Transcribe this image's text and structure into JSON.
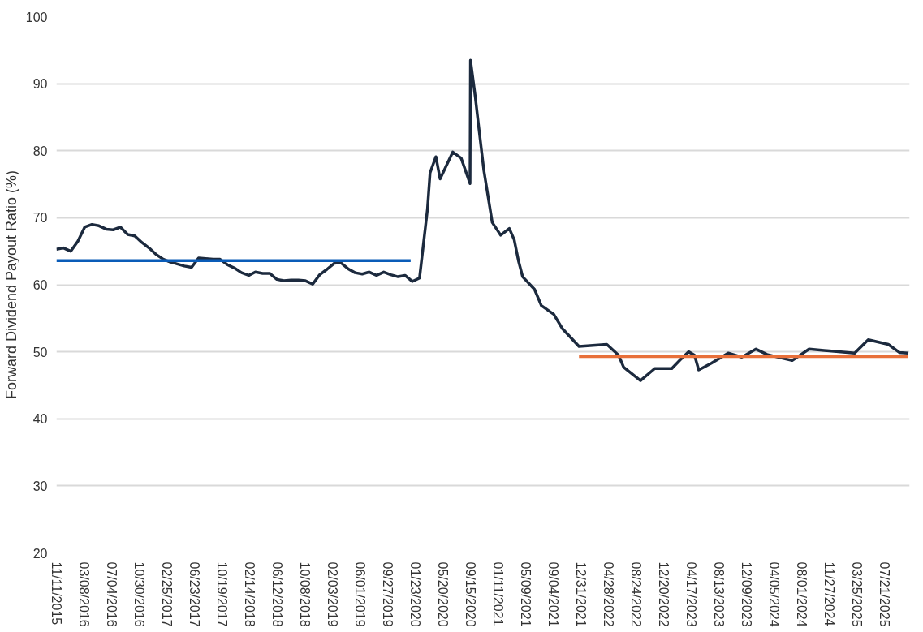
{
  "chart_data": {
    "type": "line",
    "ylabel": "Forward Dividend Payout Ratio (%)",
    "xlim": [
      "2015-11-11",
      "2025-11-07"
    ],
    "ylim": [
      20,
      100
    ],
    "yticks": [
      20,
      30,
      40,
      50,
      60,
      70,
      80,
      90,
      100
    ],
    "grid": "y",
    "line_style": "solid",
    "marker": "none",
    "xticks": [
      {
        "value": "2015-11-11",
        "label": "11/11/2015"
      },
      {
        "value": "2016-03-08",
        "label": "03/08/2016"
      },
      {
        "value": "2016-07-04",
        "label": "07/04/2016"
      },
      {
        "value": "2016-10-30",
        "label": "10/30/2016"
      },
      {
        "value": "2017-02-25",
        "label": "02/25/2017"
      },
      {
        "value": "2017-06-23",
        "label": "06/23/2017"
      },
      {
        "value": "2017-10-19",
        "label": "10/19/2017"
      },
      {
        "value": "2018-02-14",
        "label": "02/14/2018"
      },
      {
        "value": "2018-06-12",
        "label": "06/12/2018"
      },
      {
        "value": "2018-10-08",
        "label": "10/08/2018"
      },
      {
        "value": "2019-02-03",
        "label": "02/03/2019"
      },
      {
        "value": "2019-06-01",
        "label": "06/01/2019"
      },
      {
        "value": "2019-09-27",
        "label": "09/27/2019"
      },
      {
        "value": "2020-01-23",
        "label": "01/23/2020"
      },
      {
        "value": "2020-05-20",
        "label": "05/20/2020"
      },
      {
        "value": "2020-09-15",
        "label": "09/15/2020"
      },
      {
        "value": "2021-01-11",
        "label": "01/11/2021"
      },
      {
        "value": "2021-05-09",
        "label": "05/09/2021"
      },
      {
        "value": "2021-09-04",
        "label": "09/04/2021"
      },
      {
        "value": "2021-12-31",
        "label": "12/31/2021"
      },
      {
        "value": "2022-04-28",
        "label": "04/28/2022"
      },
      {
        "value": "2022-08-24",
        "label": "08/24/2022"
      },
      {
        "value": "2022-12-20",
        "label": "12/20/2022"
      },
      {
        "value": "2023-04-17",
        "label": "04/17/2023"
      },
      {
        "value": "2023-08-13",
        "label": "08/13/2023"
      },
      {
        "value": "2023-12-09",
        "label": "12/09/2023"
      },
      {
        "value": "2024-04-05",
        "label": "04/05/2024"
      },
      {
        "value": "2024-08-01",
        "label": "08/01/2024"
      },
      {
        "value": "2024-11-27",
        "label": "11/27/2024"
      },
      {
        "value": "2025-03-25",
        "label": "03/25/2025"
      },
      {
        "value": "2025-07-21",
        "label": "07/21/2025"
      }
    ],
    "series": [
      {
        "color": "#1c2a3e",
        "x": [
          "2015-11-11",
          "2015-12-11",
          "2016-01-11",
          "2016-02-11",
          "2016-03-11",
          "2016-04-11",
          "2016-05-11",
          "2016-06-11",
          "2016-07-11",
          "2016-08-11",
          "2016-09-11",
          "2016-10-11",
          "2016-11-11",
          "2016-12-11",
          "2017-01-11",
          "2017-02-11",
          "2017-03-11",
          "2017-04-11",
          "2017-05-11",
          "2017-06-11",
          "2017-07-11",
          "2017-08-11",
          "2017-09-11",
          "2017-10-11",
          "2017-11-11",
          "2017-12-11",
          "2018-01-11",
          "2018-02-11",
          "2018-03-11",
          "2018-04-11",
          "2018-05-11",
          "2018-06-11",
          "2018-07-11",
          "2018-08-11",
          "2018-09-11",
          "2018-10-11",
          "2018-11-11",
          "2018-12-11",
          "2019-01-11",
          "2019-02-11",
          "2019-03-11",
          "2019-04-11",
          "2019-05-11",
          "2019-06-11",
          "2019-07-11",
          "2019-08-11",
          "2019-09-11",
          "2019-10-11",
          "2019-11-11",
          "2019-12-11",
          "2020-01-11",
          "2020-02-11",
          "2020-03-16",
          "2020-03-27",
          "2020-04-21",
          "2020-05-09",
          "2020-07-02",
          "2020-08-07",
          "2020-09-14",
          "2020-09-16",
          "2020-10-07",
          "2020-10-18",
          "2020-11-12",
          "2020-12-18",
          "2021-01-23",
          "2021-03-01",
          "2021-03-22",
          "2021-04-09",
          "2021-04-27",
          "2021-06-17",
          "2021-07-16",
          "2021-09-07",
          "2021-10-13",
          "2021-12-24",
          "2022-04-22",
          "2022-06-11",
          "2022-07-03",
          "2022-09-13",
          "2022-11-13",
          "2023-01-25",
          "2023-03-02",
          "2023-04-07",
          "2023-05-02",
          "2023-05-20",
          "2023-07-13",
          "2023-09-23",
          "2023-11-20",
          "2024-01-20",
          "2024-03-07",
          "2024-06-23",
          "2024-09-03",
          "2025-03-17",
          "2025-05-14",
          "2025-08-08",
          "2025-09-24",
          "2025-10-30"
        ],
        "values": [
          65.3,
          65.5,
          65.0,
          66.5,
          68.6,
          69.0,
          68.8,
          68.3,
          68.2,
          68.6,
          67.5,
          67.3,
          66.3,
          65.5,
          64.5,
          63.8,
          63.4,
          63.1,
          62.8,
          62.6,
          64.0,
          63.9,
          63.8,
          63.8,
          63.0,
          62.5,
          61.8,
          61.4,
          61.9,
          61.7,
          61.7,
          60.8,
          60.6,
          60.7,
          60.7,
          60.6,
          60.1,
          61.5,
          62.3,
          63.2,
          63.3,
          62.4,
          61.8,
          61.6,
          61.9,
          61.4,
          61.9,
          61.5,
          61.2,
          61.4,
          60.5,
          61.0,
          71.3,
          76.7,
          79.1,
          75.8,
          79.8,
          78.9,
          75.1,
          93.5,
          87.9,
          84.5,
          77.1,
          69.3,
          67.4,
          68.4,
          66.7,
          63.6,
          61.2,
          59.3,
          56.9,
          55.6,
          53.5,
          50.8,
          51.1,
          49.5,
          47.7,
          45.7,
          47.5,
          47.5,
          48.8,
          50.0,
          49.5,
          47.3,
          48.3,
          49.8,
          49.2,
          50.4,
          49.6,
          48.7,
          50.4,
          49.8,
          51.8,
          51.1,
          49.9,
          49.8
        ]
      },
      {
        "color": "#0a5cb8",
        "x": [
          "2015-11-11",
          "2020-01-04"
        ],
        "values": [
          63.6,
          63.6
        ]
      },
      {
        "color": "#e8703a",
        "x": [
          "2021-12-24",
          "2025-10-30"
        ],
        "values": [
          49.3,
          49.3
        ]
      }
    ]
  }
}
